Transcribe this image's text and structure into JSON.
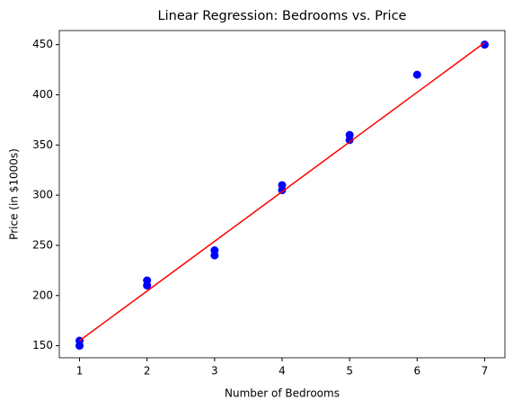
{
  "chart_data": {
    "type": "scatter",
    "title": "Linear Regression: Bedrooms vs. Price",
    "x_label": "Number of Bedrooms",
    "y_label": "Price (in $1000s)",
    "series": [
      {
        "type": "scatter",
        "color": "#0000ff",
        "x": [
          1,
          1,
          2,
          2,
          3,
          3,
          4,
          4,
          5,
          5,
          6,
          7
        ],
        "values": [
          150,
          155,
          210,
          215,
          240,
          245,
          305,
          310,
          355,
          360,
          420,
          450
        ]
      },
      {
        "type": "line",
        "color": "#ff0000",
        "x": [
          1,
          2,
          3,
          4,
          5,
          6,
          7
        ],
        "values": [
          155,
          204.5,
          254,
          303.5,
          353,
          402.5,
          452
        ]
      }
    ],
    "xlim": [
      0.7,
      7.3
    ],
    "xticks": [
      1,
      2,
      3,
      4,
      5,
      6,
      7
    ],
    "ylim": [
      138,
      464
    ],
    "yticks": [
      150,
      200,
      250,
      300,
      350,
      400,
      450
    ],
    "grid": false
  }
}
